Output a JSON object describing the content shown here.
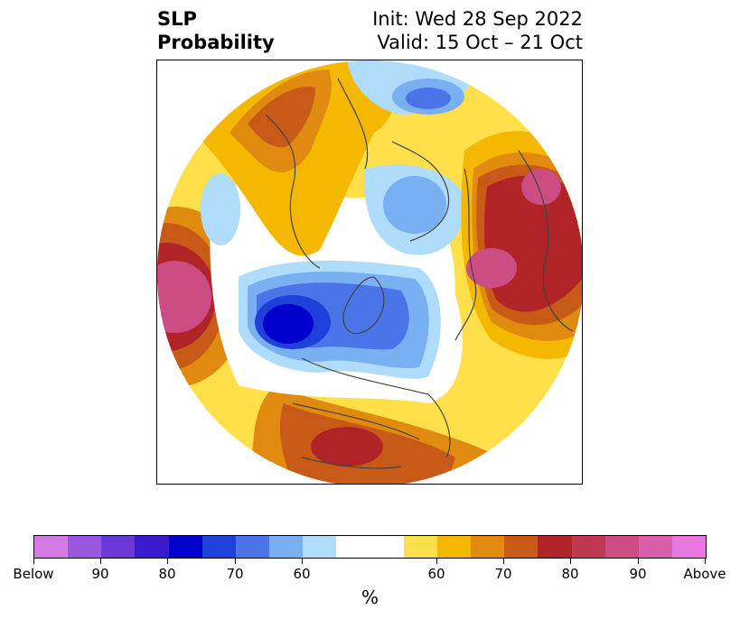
{
  "title": {
    "left_line1": "SLP",
    "left_line2": "Probability",
    "right_line1": "Init: Wed 28 Sep 2022",
    "right_line2": "Valid: 15 Oct – 21 Oct"
  },
  "colorbar": {
    "colors": [
      "#d67ae6",
      "#9a57e0",
      "#6b39d8",
      "#3a1bd0",
      "#0000cc",
      "#2040dc",
      "#4a74e8",
      "#78b0f2",
      "#aedcfa",
      "#ffffff",
      "#ffffff",
      "#ffe04a",
      "#f4b800",
      "#e08a10",
      "#c85a18",
      "#b02428",
      "#c03850",
      "#cc4c84",
      "#d860a8",
      "#e678e0"
    ],
    "tick_labels": [
      "Below",
      "90",
      "80",
      "70",
      "60",
      "60",
      "70",
      "80",
      "90",
      "Above"
    ],
    "units": "%"
  },
  "palette": {
    "above_90": "#cc4c84",
    "above_80": "#b02428",
    "above_70": "#c85a18",
    "above_65": "#e08a10",
    "above_60": "#f4b800",
    "above_55": "#ffe04a",
    "below_55": "#aedcfa",
    "below_60": "#78b0f2",
    "below_70": "#4a74e8",
    "below_80": "#2040dc",
    "below_90": "#0000cc",
    "coast": "#444444"
  }
}
